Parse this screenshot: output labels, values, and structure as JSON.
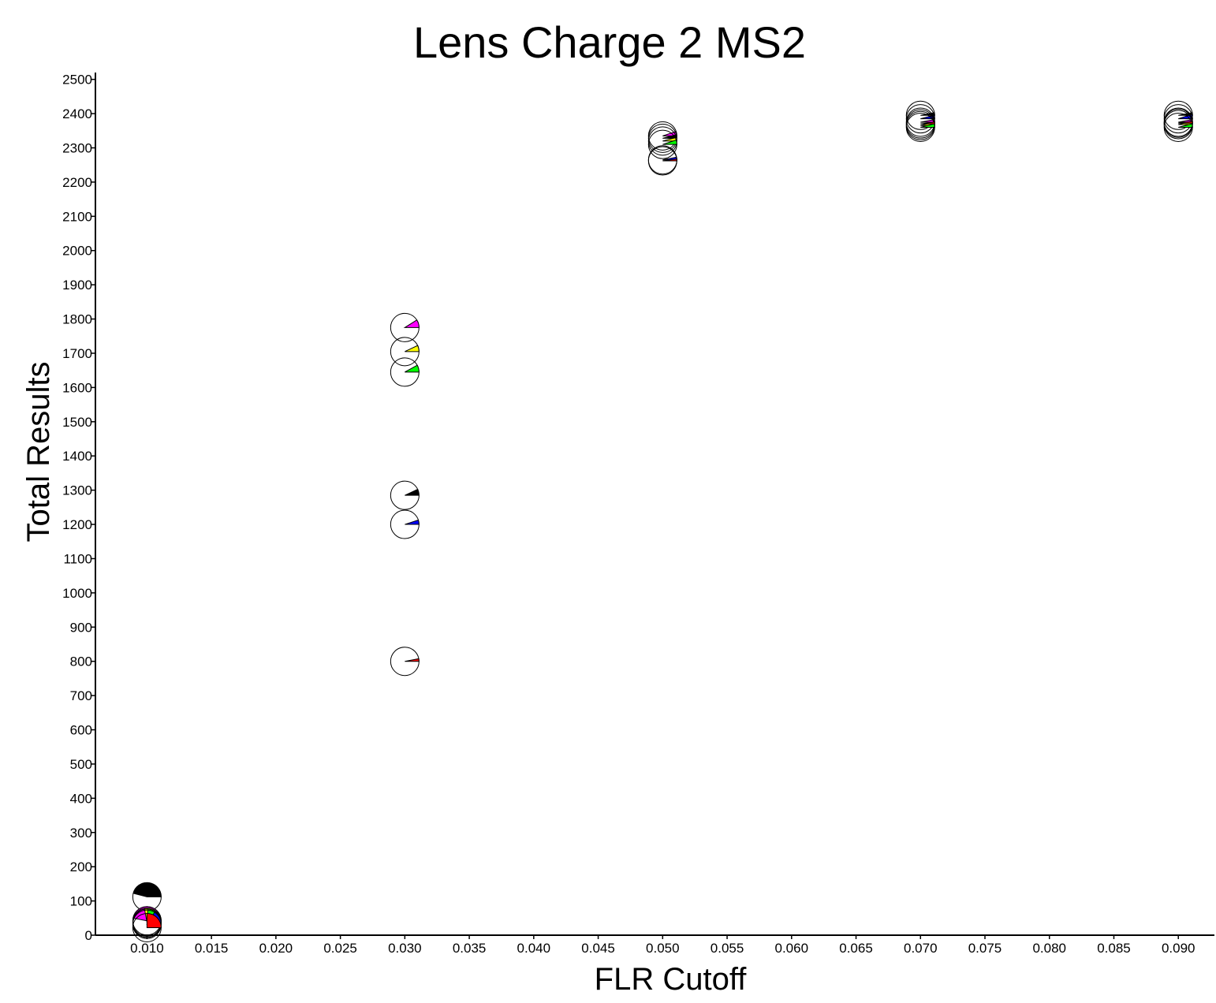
{
  "chart_data": {
    "type": "scatter",
    "title": "Lens Charge 2 MS2",
    "xlabel": "FLR Cutoff",
    "ylabel": "Total Results",
    "xlim": [
      0.006,
      0.0928
    ],
    "ylim": [
      0,
      2520
    ],
    "x_ticks": [
      "0.010",
      "0.015",
      "0.020",
      "0.025",
      "0.030",
      "0.035",
      "0.040",
      "0.045",
      "0.050",
      "0.055",
      "0.060",
      "0.065",
      "0.070",
      "0.075",
      "0.080",
      "0.085",
      "0.090"
    ],
    "y_ticks": [
      "0",
      "100",
      "200",
      "300",
      "400",
      "500",
      "600",
      "700",
      "800",
      "900",
      "1000",
      "1100",
      "1200",
      "1300",
      "1400",
      "1500",
      "1600",
      "1700",
      "1800",
      "1900",
      "2000",
      "2100",
      "2200",
      "2300",
      "2400",
      "2500"
    ],
    "grid": false,
    "legend": "none",
    "marker": "pie-circle",
    "points": [
      {
        "x": 0.01,
        "y": 112,
        "wedge_fraction": 0.46,
        "color": "#000000"
      },
      {
        "x": 0.01,
        "y": 42,
        "wedge_fraction": 0.47,
        "color": "#ff00ff"
      },
      {
        "x": 0.01,
        "y": 38,
        "wedge_fraction": 0.28,
        "color": "#ffff00"
      },
      {
        "x": 0.01,
        "y": 35,
        "wedge_fraction": 0.24,
        "color": "#00ff00"
      },
      {
        "x": 0.01,
        "y": 32,
        "wedge_fraction": 0.16,
        "color": "#0000ff"
      },
      {
        "x": 0.01,
        "y": 22,
        "wedge_fraction": 0.25,
        "color": "#ff0000"
      },
      {
        "x": 0.03,
        "y": 1775,
        "wedge_fraction": 0.09,
        "color": "#ff00ff"
      },
      {
        "x": 0.03,
        "y": 1705,
        "wedge_fraction": 0.07,
        "color": "#ffff00"
      },
      {
        "x": 0.03,
        "y": 1645,
        "wedge_fraction": 0.08,
        "color": "#00ff00"
      },
      {
        "x": 0.03,
        "y": 1285,
        "wedge_fraction": 0.07,
        "color": "#000000"
      },
      {
        "x": 0.03,
        "y": 1200,
        "wedge_fraction": 0.05,
        "color": "#0000ff"
      },
      {
        "x": 0.03,
        "y": 800,
        "wedge_fraction": 0.03,
        "color": "#ff0000"
      },
      {
        "x": 0.05,
        "y": 2335,
        "wedge_fraction": 0.05,
        "color": "#ff00ff"
      },
      {
        "x": 0.05,
        "y": 2328,
        "wedge_fraction": 0.04,
        "color": "#000000"
      },
      {
        "x": 0.05,
        "y": 2320,
        "wedge_fraction": 0.04,
        "color": "#ffff00"
      },
      {
        "x": 0.05,
        "y": 2310,
        "wedge_fraction": 0.05,
        "color": "#00ff00"
      },
      {
        "x": 0.05,
        "y": 2265,
        "wedge_fraction": 0.03,
        "color": "#0000ff"
      },
      {
        "x": 0.05,
        "y": 2262,
        "wedge_fraction": 0.02,
        "color": "#ff0000"
      },
      {
        "x": 0.07,
        "y": 2395,
        "wedge_fraction": 0.03,
        "color": "#000000"
      },
      {
        "x": 0.07,
        "y": 2385,
        "wedge_fraction": 0.04,
        "color": "#0000ff"
      },
      {
        "x": 0.07,
        "y": 2375,
        "wedge_fraction": 0.03,
        "color": "#ff00ff"
      },
      {
        "x": 0.07,
        "y": 2365,
        "wedge_fraction": 0.04,
        "color": "#ffff00"
      },
      {
        "x": 0.07,
        "y": 2360,
        "wedge_fraction": 0.04,
        "color": "#00ff00"
      },
      {
        "x": 0.07,
        "y": 2370,
        "wedge_fraction": 0.02,
        "color": "#ff0000"
      },
      {
        "x": 0.09,
        "y": 2395,
        "wedge_fraction": 0.03,
        "color": "#000000"
      },
      {
        "x": 0.09,
        "y": 2385,
        "wedge_fraction": 0.05,
        "color": "#0000ff"
      },
      {
        "x": 0.09,
        "y": 2375,
        "wedge_fraction": 0.03,
        "color": "#ff00ff"
      },
      {
        "x": 0.09,
        "y": 2368,
        "wedge_fraction": 0.04,
        "color": "#ffff00"
      },
      {
        "x": 0.09,
        "y": 2360,
        "wedge_fraction": 0.04,
        "color": "#00ff00"
      },
      {
        "x": 0.09,
        "y": 2372,
        "wedge_fraction": 0.02,
        "color": "#ff0000"
      }
    ]
  }
}
